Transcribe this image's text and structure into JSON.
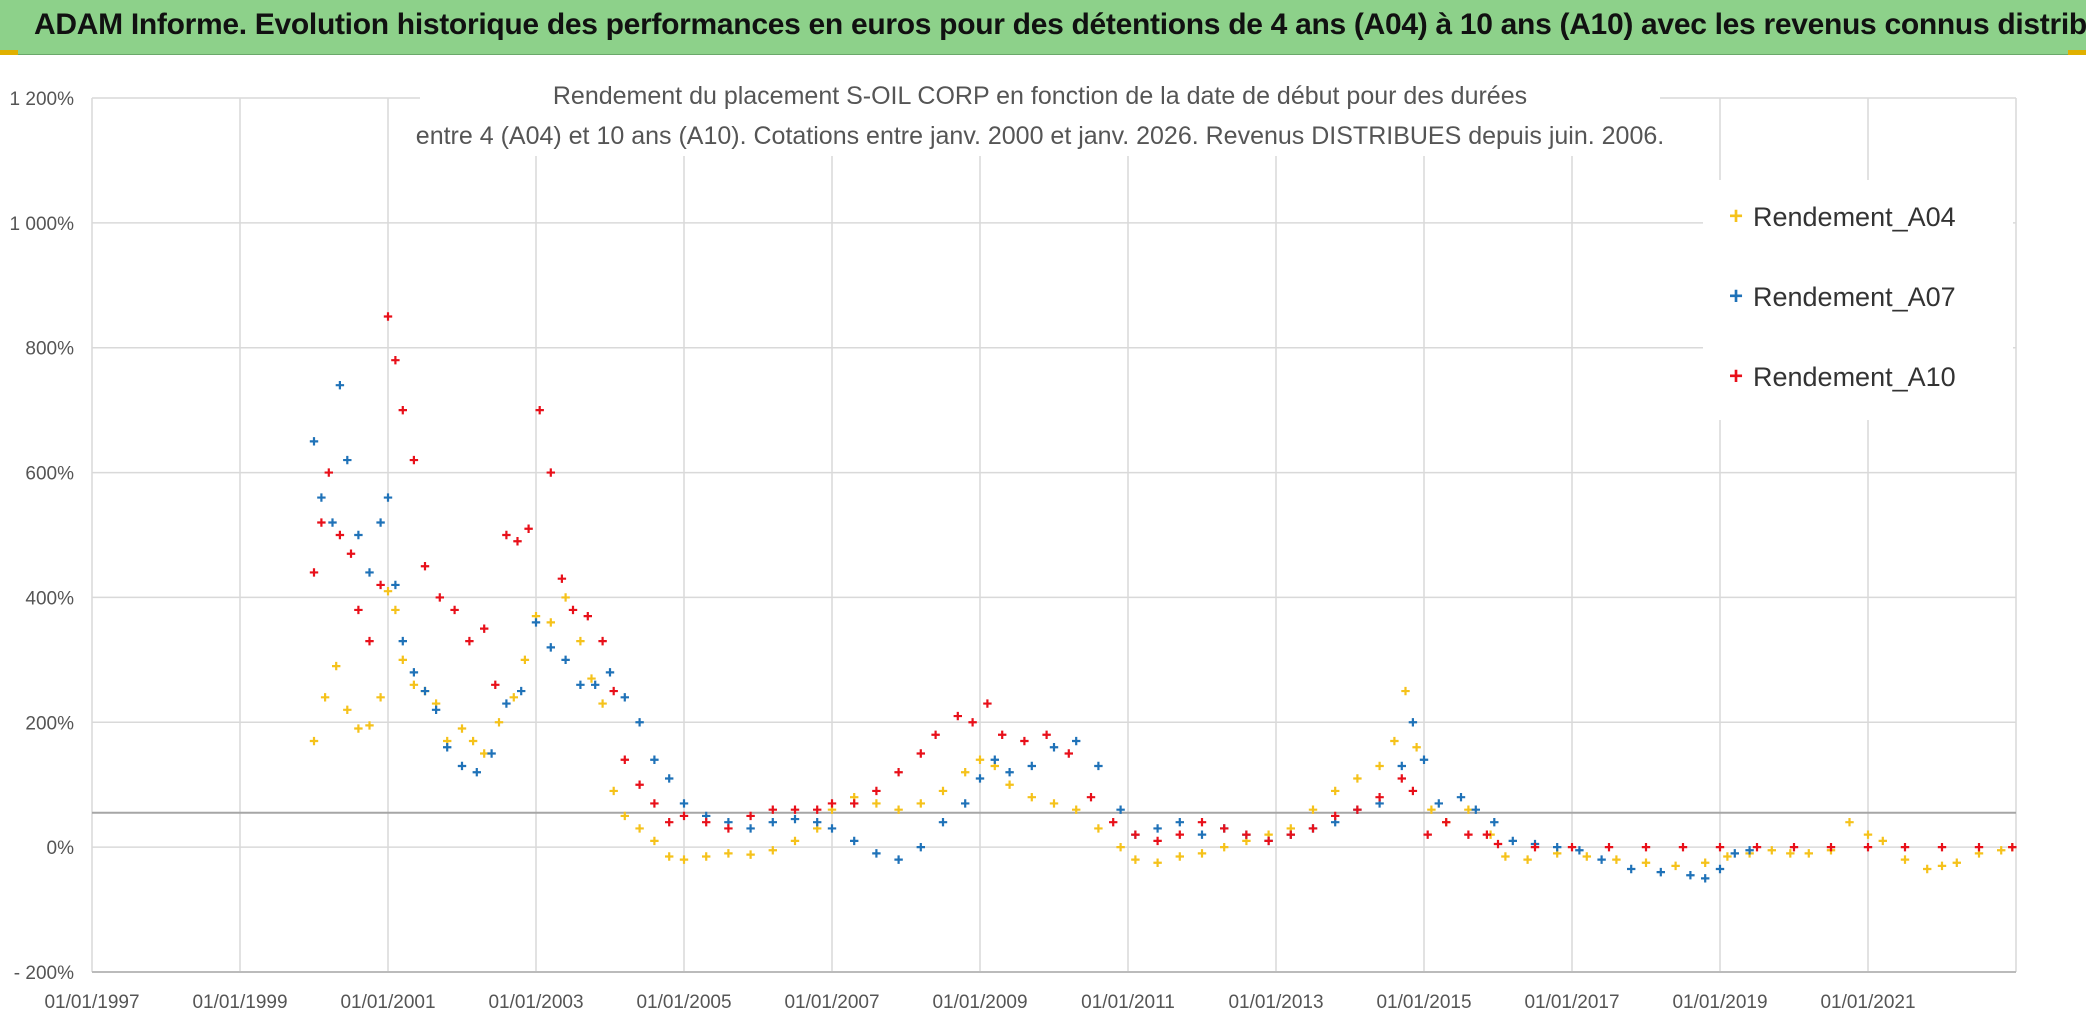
{
  "header": {
    "title": "ADAM Informe. Evolution historique des performances en euros pour des détentions de 4 ans (A04) à 10 ans (A10) avec les revenus connus distribués"
  },
  "colors": {
    "a04": "#f5c21b",
    "a07": "#1f72b8",
    "a10": "#e8101a",
    "header_bg": "#8dd18a",
    "grid": "#d9d9d9"
  },
  "chart_data": {
    "type": "scatter",
    "title": "Rendement du placement S-OIL CORP en fonction de la date de début pour des durées",
    "subtitle": "entre 4 (A04) et 10 ans (A10). Cotations entre janv. 2000 et janv. 2026. Revenus DISTRIBUES depuis juin. 2006.",
    "x_range": [
      1997.0,
      2023.0
    ],
    "y_range": [
      -200,
      1200
    ],
    "x_ticks": [
      {
        "value": 1997.0,
        "label": "01/01/1997"
      },
      {
        "value": 1999.0,
        "label": "01/01/1999"
      },
      {
        "value": 2001.0,
        "label": "01/01/2001"
      },
      {
        "value": 2003.0,
        "label": "01/01/2003"
      },
      {
        "value": 2005.0,
        "label": "01/01/2005"
      },
      {
        "value": 2007.0,
        "label": "01/01/2007"
      },
      {
        "value": 2009.0,
        "label": "01/01/2009"
      },
      {
        "value": 2011.0,
        "label": "01/01/2011"
      },
      {
        "value": 2013.0,
        "label": "01/01/2013"
      },
      {
        "value": 2015.0,
        "label": "01/01/2015"
      },
      {
        "value": 2017.0,
        "label": "01/01/2017"
      },
      {
        "value": 2019.0,
        "label": "01/01/2019"
      },
      {
        "value": 2021.0,
        "label": "01/01/2021"
      }
    ],
    "y_ticks": [
      {
        "value": 1200,
        "label": "1 200%"
      },
      {
        "value": 1000,
        "label": "1 000%"
      },
      {
        "value": 800,
        "label": "800%"
      },
      {
        "value": 600,
        "label": "600%"
      },
      {
        "value": 400,
        "label": "400%"
      },
      {
        "value": 200,
        "label": "200%"
      },
      {
        "value": 0,
        "label": "0%"
      },
      {
        "value": -200,
        "label": "- 200%"
      }
    ],
    "reference_line": 55,
    "legend": {
      "placement": "top-right"
    },
    "series": [
      {
        "name": "Rendement_A04",
        "key": "a04",
        "points": [
          [
            2000.0,
            170
          ],
          [
            2000.15,
            240
          ],
          [
            2000.3,
            290
          ],
          [
            2000.45,
            220
          ],
          [
            2000.6,
            190
          ],
          [
            2000.75,
            195
          ],
          [
            2000.9,
            240
          ],
          [
            2001.0,
            410
          ],
          [
            2001.1,
            380
          ],
          [
            2001.2,
            300
          ],
          [
            2001.35,
            260
          ],
          [
            2001.5,
            250
          ],
          [
            2001.65,
            230
          ],
          [
            2001.8,
            170
          ],
          [
            2002.0,
            190
          ],
          [
            2002.15,
            170
          ],
          [
            2002.3,
            150
          ],
          [
            2002.5,
            200
          ],
          [
            2002.7,
            240
          ],
          [
            2002.85,
            300
          ],
          [
            2003.0,
            370
          ],
          [
            2003.2,
            360
          ],
          [
            2003.4,
            400
          ],
          [
            2003.6,
            330
          ],
          [
            2003.75,
            270
          ],
          [
            2003.9,
            230
          ],
          [
            2004.05,
            90
          ],
          [
            2004.2,
            50
          ],
          [
            2004.4,
            30
          ],
          [
            2004.6,
            10
          ],
          [
            2004.8,
            -15
          ],
          [
            2005.0,
            -20
          ],
          [
            2005.3,
            -15
          ],
          [
            2005.6,
            -10
          ],
          [
            2005.9,
            -12
          ],
          [
            2006.2,
            -5
          ],
          [
            2006.5,
            10
          ],
          [
            2006.8,
            30
          ],
          [
            2007.0,
            60
          ],
          [
            2007.3,
            80
          ],
          [
            2007.6,
            70
          ],
          [
            2007.9,
            60
          ],
          [
            2008.2,
            70
          ],
          [
            2008.5,
            90
          ],
          [
            2008.8,
            120
          ],
          [
            2009.0,
            140
          ],
          [
            2009.2,
            130
          ],
          [
            2009.4,
            100
          ],
          [
            2009.7,
            80
          ],
          [
            2010.0,
            70
          ],
          [
            2010.3,
            60
          ],
          [
            2010.6,
            30
          ],
          [
            2010.9,
            0
          ],
          [
            2011.1,
            -20
          ],
          [
            2011.4,
            -25
          ],
          [
            2011.7,
            -15
          ],
          [
            2012.0,
            -10
          ],
          [
            2012.3,
            0
          ],
          [
            2012.6,
            10
          ],
          [
            2012.9,
            20
          ],
          [
            2013.2,
            30
          ],
          [
            2013.5,
            60
          ],
          [
            2013.8,
            90
          ],
          [
            2014.1,
            110
          ],
          [
            2014.4,
            130
          ],
          [
            2014.6,
            170
          ],
          [
            2014.75,
            250
          ],
          [
            2014.9,
            160
          ],
          [
            2015.1,
            60
          ],
          [
            2015.3,
            40
          ],
          [
            2015.6,
            60
          ],
          [
            2015.9,
            20
          ],
          [
            2016.1,
            -15
          ],
          [
            2016.4,
            -20
          ],
          [
            2016.8,
            -10
          ],
          [
            2017.2,
            -15
          ],
          [
            2017.6,
            -20
          ],
          [
            2018.0,
            -25
          ],
          [
            2018.4,
            -30
          ],
          [
            2018.8,
            -25
          ],
          [
            2019.1,
            -15
          ],
          [
            2019.4,
            -10
          ],
          [
            2019.7,
            -5
          ],
          [
            2019.95,
            -10
          ],
          [
            2020.2,
            -10
          ],
          [
            2020.5,
            -5
          ],
          [
            2020.75,
            40
          ],
          [
            2021.0,
            20
          ],
          [
            2021.2,
            10
          ],
          [
            2021.5,
            -20
          ],
          [
            2021.8,
            -35
          ],
          [
            2022.0,
            -30
          ],
          [
            2022.2,
            -25
          ],
          [
            2022.5,
            -10
          ],
          [
            2022.8,
            -5
          ],
          [
            2022.95,
            0
          ]
        ]
      },
      {
        "name": "Rendement_A07",
        "key": "a07",
        "points": [
          [
            2000.0,
            650
          ],
          [
            2000.1,
            560
          ],
          [
            2000.25,
            520
          ],
          [
            2000.35,
            740
          ],
          [
            2000.45,
            620
          ],
          [
            2000.6,
            500
          ],
          [
            2000.75,
            440
          ],
          [
            2000.9,
            520
          ],
          [
            2001.0,
            560
          ],
          [
            2001.1,
            420
          ],
          [
            2001.2,
            330
          ],
          [
            2001.35,
            280
          ],
          [
            2001.5,
            250
          ],
          [
            2001.65,
            220
          ],
          [
            2001.8,
            160
          ],
          [
            2002.0,
            130
          ],
          [
            2002.2,
            120
          ],
          [
            2002.4,
            150
          ],
          [
            2002.6,
            230
          ],
          [
            2002.8,
            250
          ],
          [
            2003.0,
            360
          ],
          [
            2003.2,
            320
          ],
          [
            2003.4,
            300
          ],
          [
            2003.6,
            260
          ],
          [
            2003.8,
            260
          ],
          [
            2004.0,
            280
          ],
          [
            2004.2,
            240
          ],
          [
            2004.4,
            200
          ],
          [
            2004.6,
            140
          ],
          [
            2004.8,
            110
          ],
          [
            2005.0,
            70
          ],
          [
            2005.3,
            50
          ],
          [
            2005.6,
            40
          ],
          [
            2005.9,
            30
          ],
          [
            2006.2,
            40
          ],
          [
            2006.5,
            45
          ],
          [
            2006.8,
            40
          ],
          [
            2007.0,
            30
          ],
          [
            2007.3,
            10
          ],
          [
            2007.6,
            -10
          ],
          [
            2007.9,
            -20
          ],
          [
            2008.2,
            0
          ],
          [
            2008.5,
            40
          ],
          [
            2008.8,
            70
          ],
          [
            2009.0,
            110
          ],
          [
            2009.2,
            140
          ],
          [
            2009.4,
            120
          ],
          [
            2009.7,
            130
          ],
          [
            2010.0,
            160
          ],
          [
            2010.3,
            170
          ],
          [
            2010.6,
            130
          ],
          [
            2010.9,
            60
          ],
          [
            2011.1,
            20
          ],
          [
            2011.4,
            30
          ],
          [
            2011.7,
            40
          ],
          [
            2012.0,
            20
          ],
          [
            2012.3,
            30
          ],
          [
            2012.6,
            20
          ],
          [
            2012.9,
            10
          ],
          [
            2013.2,
            20
          ],
          [
            2013.5,
            30
          ],
          [
            2013.8,
            40
          ],
          [
            2014.1,
            60
          ],
          [
            2014.4,
            70
          ],
          [
            2014.7,
            130
          ],
          [
            2014.85,
            200
          ],
          [
            2015.0,
            140
          ],
          [
            2015.2,
            70
          ],
          [
            2015.5,
            80
          ],
          [
            2015.7,
            60
          ],
          [
            2015.95,
            40
          ],
          [
            2016.2,
            10
          ],
          [
            2016.5,
            5
          ],
          [
            2016.8,
            0
          ],
          [
            2017.1,
            -5
          ],
          [
            2017.4,
            -20
          ],
          [
            2017.8,
            -35
          ],
          [
            2018.2,
            -40
          ],
          [
            2018.6,
            -45
          ],
          [
            2018.8,
            -50
          ],
          [
            2019.0,
            -35
          ],
          [
            2019.2,
            -10
          ],
          [
            2019.4,
            -5
          ]
        ]
      },
      {
        "name": "Rendement_A10",
        "key": "a10",
        "points": [
          [
            2000.0,
            440
          ],
          [
            2000.1,
            520
          ],
          [
            2000.2,
            600
          ],
          [
            2000.35,
            500
          ],
          [
            2000.5,
            470
          ],
          [
            2000.6,
            380
          ],
          [
            2000.75,
            330
          ],
          [
            2000.9,
            420
          ],
          [
            2001.0,
            850
          ],
          [
            2001.1,
            780
          ],
          [
            2001.2,
            700
          ],
          [
            2001.35,
            620
          ],
          [
            2001.5,
            450
          ],
          [
            2001.7,
            400
          ],
          [
            2001.9,
            380
          ],
          [
            2002.1,
            330
          ],
          [
            2002.3,
            350
          ],
          [
            2002.45,
            260
          ],
          [
            2002.6,
            500
          ],
          [
            2002.75,
            490
          ],
          [
            2002.9,
            510
          ],
          [
            2003.05,
            700
          ],
          [
            2003.2,
            600
          ],
          [
            2003.35,
            430
          ],
          [
            2003.5,
            380
          ],
          [
            2003.7,
            370
          ],
          [
            2003.9,
            330
          ],
          [
            2004.05,
            250
          ],
          [
            2004.2,
            140
          ],
          [
            2004.4,
            100
          ],
          [
            2004.6,
            70
          ],
          [
            2004.8,
            40
          ],
          [
            2005.0,
            50
          ],
          [
            2005.3,
            40
          ],
          [
            2005.6,
            30
          ],
          [
            2005.9,
            50
          ],
          [
            2006.2,
            60
          ],
          [
            2006.5,
            60
          ],
          [
            2006.8,
            60
          ],
          [
            2007.0,
            70
          ],
          [
            2007.3,
            70
          ],
          [
            2007.6,
            90
          ],
          [
            2007.9,
            120
          ],
          [
            2008.2,
            150
          ],
          [
            2008.4,
            180
          ],
          [
            2008.7,
            210
          ],
          [
            2008.9,
            200
          ],
          [
            2009.1,
            230
          ],
          [
            2009.3,
            180
          ],
          [
            2009.6,
            170
          ],
          [
            2009.9,
            180
          ],
          [
            2010.2,
            150
          ],
          [
            2010.5,
            80
          ],
          [
            2010.8,
            40
          ],
          [
            2011.1,
            20
          ],
          [
            2011.4,
            10
          ],
          [
            2011.7,
            20
          ],
          [
            2012.0,
            40
          ],
          [
            2012.3,
            30
          ],
          [
            2012.6,
            20
          ],
          [
            2012.9,
            10
          ],
          [
            2013.2,
            20
          ],
          [
            2013.5,
            30
          ],
          [
            2013.8,
            50
          ],
          [
            2014.1,
            60
          ],
          [
            2014.4,
            80
          ],
          [
            2014.7,
            110
          ],
          [
            2014.85,
            90
          ],
          [
            2015.05,
            20
          ],
          [
            2015.3,
            40
          ],
          [
            2015.6,
            20
          ],
          [
            2015.85,
            20
          ],
          [
            2016.0,
            5
          ],
          [
            2016.5,
            0
          ],
          [
            2017.0,
            0
          ],
          [
            2017.5,
            0
          ],
          [
            2018.0,
            0
          ],
          [
            2018.5,
            0
          ],
          [
            2019.0,
            0
          ],
          [
            2019.5,
            0
          ],
          [
            2020.0,
            0
          ],
          [
            2020.5,
            0
          ],
          [
            2021.0,
            0
          ],
          [
            2021.5,
            0
          ],
          [
            2022.0,
            0
          ],
          [
            2022.5,
            0
          ],
          [
            2022.95,
            0
          ]
        ]
      }
    ]
  }
}
